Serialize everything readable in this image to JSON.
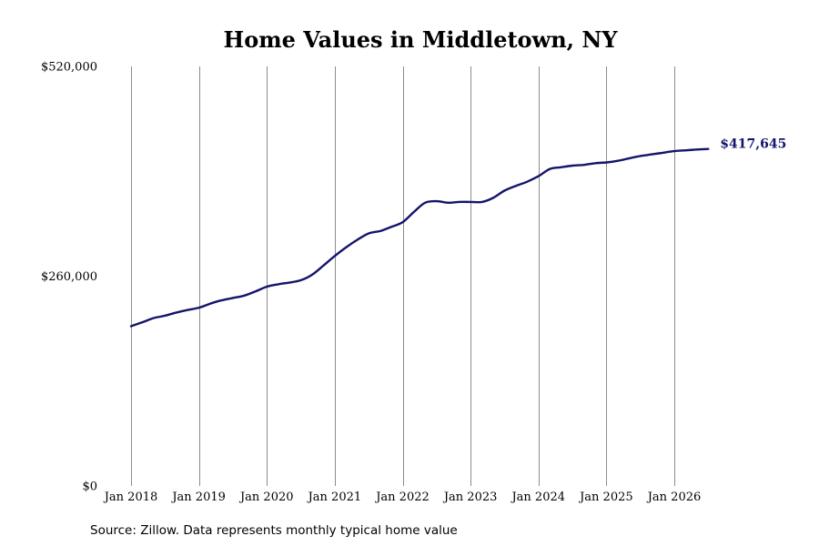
{
  "colors": {
    "line": "#13146b",
    "end_label": "#13146b",
    "grid": "#8c8c8c",
    "background": "#ffffff"
  },
  "chart_data": {
    "type": "line",
    "title": "Home Values in Middletown, NY",
    "xlabel": "",
    "ylabel": "",
    "ylim": [
      0,
      520000
    ],
    "y_ticks": [
      {
        "value": 0,
        "label": "$0"
      },
      {
        "value": 260000,
        "label": "$260,000"
      },
      {
        "value": 520000,
        "label": "$520,000"
      }
    ],
    "x_ticks": [
      {
        "value": 2018.0,
        "label": "Jan 2018"
      },
      {
        "value": 2019.0,
        "label": "Jan 2019"
      },
      {
        "value": 2020.0,
        "label": "Jan 2020"
      },
      {
        "value": 2021.0,
        "label": "Jan 2021"
      },
      {
        "value": 2022.0,
        "label": "Jan 2022"
      },
      {
        "value": 2023.0,
        "label": "Jan 2023"
      },
      {
        "value": 2024.0,
        "label": "Jan 2024"
      },
      {
        "value": 2025.0,
        "label": "Jan 2025"
      },
      {
        "value": 2026.0,
        "label": "Jan 2026"
      }
    ],
    "grid": {
      "vertical": true,
      "horizontal": false
    },
    "legend": "none",
    "end_label": "$417,645",
    "series": [
      {
        "x": [
          2018.0,
          2018.17,
          2018.33,
          2018.5,
          2018.67,
          2018.83,
          2019.0,
          2019.17,
          2019.33,
          2019.5,
          2019.67,
          2019.83,
          2020.0,
          2020.17,
          2020.33,
          2020.5,
          2020.67,
          2020.83,
          2021.0,
          2021.17,
          2021.33,
          2021.5,
          2021.67,
          2021.83,
          2022.0,
          2022.17,
          2022.33,
          2022.5,
          2022.67,
          2022.83,
          2023.0,
          2023.17,
          2023.33,
          2023.5,
          2023.67,
          2023.83,
          2024.0,
          2024.17,
          2024.33,
          2024.5,
          2024.67,
          2024.83,
          2025.0,
          2025.17,
          2025.33,
          2025.5,
          2025.67,
          2025.83,
          2026.0,
          2026.17,
          2026.33,
          2026.5
        ],
        "y": [
          198000,
          203000,
          208000,
          211000,
          215000,
          218000,
          221000,
          226000,
          230000,
          233000,
          236000,
          241000,
          247000,
          250000,
          252000,
          255000,
          262000,
          273000,
          285000,
          296000,
          305000,
          313000,
          316000,
          321000,
          327000,
          340000,
          351000,
          353000,
          351000,
          352000,
          352000,
          352000,
          357000,
          366000,
          372000,
          377000,
          384000,
          393000,
          395000,
          397000,
          398000,
          400000,
          401000,
          403000,
          406000,
          409000,
          411000,
          413000,
          415000,
          416000,
          417000,
          417645
        ]
      }
    ]
  },
  "footer": {
    "source": "Source: Zillow. Data represents monthly typical home value"
  }
}
